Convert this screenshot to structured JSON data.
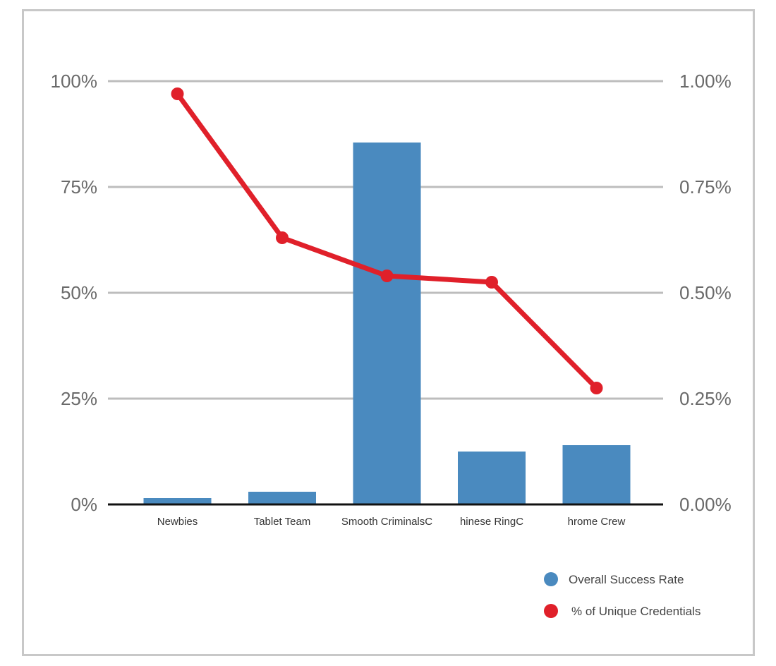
{
  "chart_data": {
    "type": "bar",
    "categories": [
      "Newbies",
      "Tablet Team",
      "Smooth CriminalsC",
      "hinese RingC",
      "hrome Crew"
    ],
    "series": [
      {
        "name": "Overall Success Rate",
        "type": "bar",
        "axis": "left",
        "color": "#4a8abf",
        "values": [
          1.5,
          3,
          85.5,
          12.5,
          14
        ]
      },
      {
        "name": "% of Unique Credentials",
        "type": "line",
        "axis": "right",
        "color": "#e0202a",
        "values": [
          0.97,
          0.63,
          0.54,
          0.525,
          0.275
        ]
      }
    ],
    "y_left": {
      "ylim": [
        0,
        100
      ],
      "ticks": [
        0,
        25,
        50,
        75,
        100
      ],
      "tick_labels": [
        "0%",
        "25%",
        "50%",
        "75%",
        "100%"
      ]
    },
    "y_right": {
      "ylim": [
        0,
        1
      ],
      "ticks": [
        0,
        0.25,
        0.5,
        0.75,
        1
      ],
      "tick_labels": [
        "0.00%",
        "0.25%",
        "0.50%",
        "0.75%",
        "1.00%"
      ]
    },
    "grid": true,
    "legend": "bottom-right",
    "title": "",
    "xlabel": "",
    "ylabel": ""
  }
}
